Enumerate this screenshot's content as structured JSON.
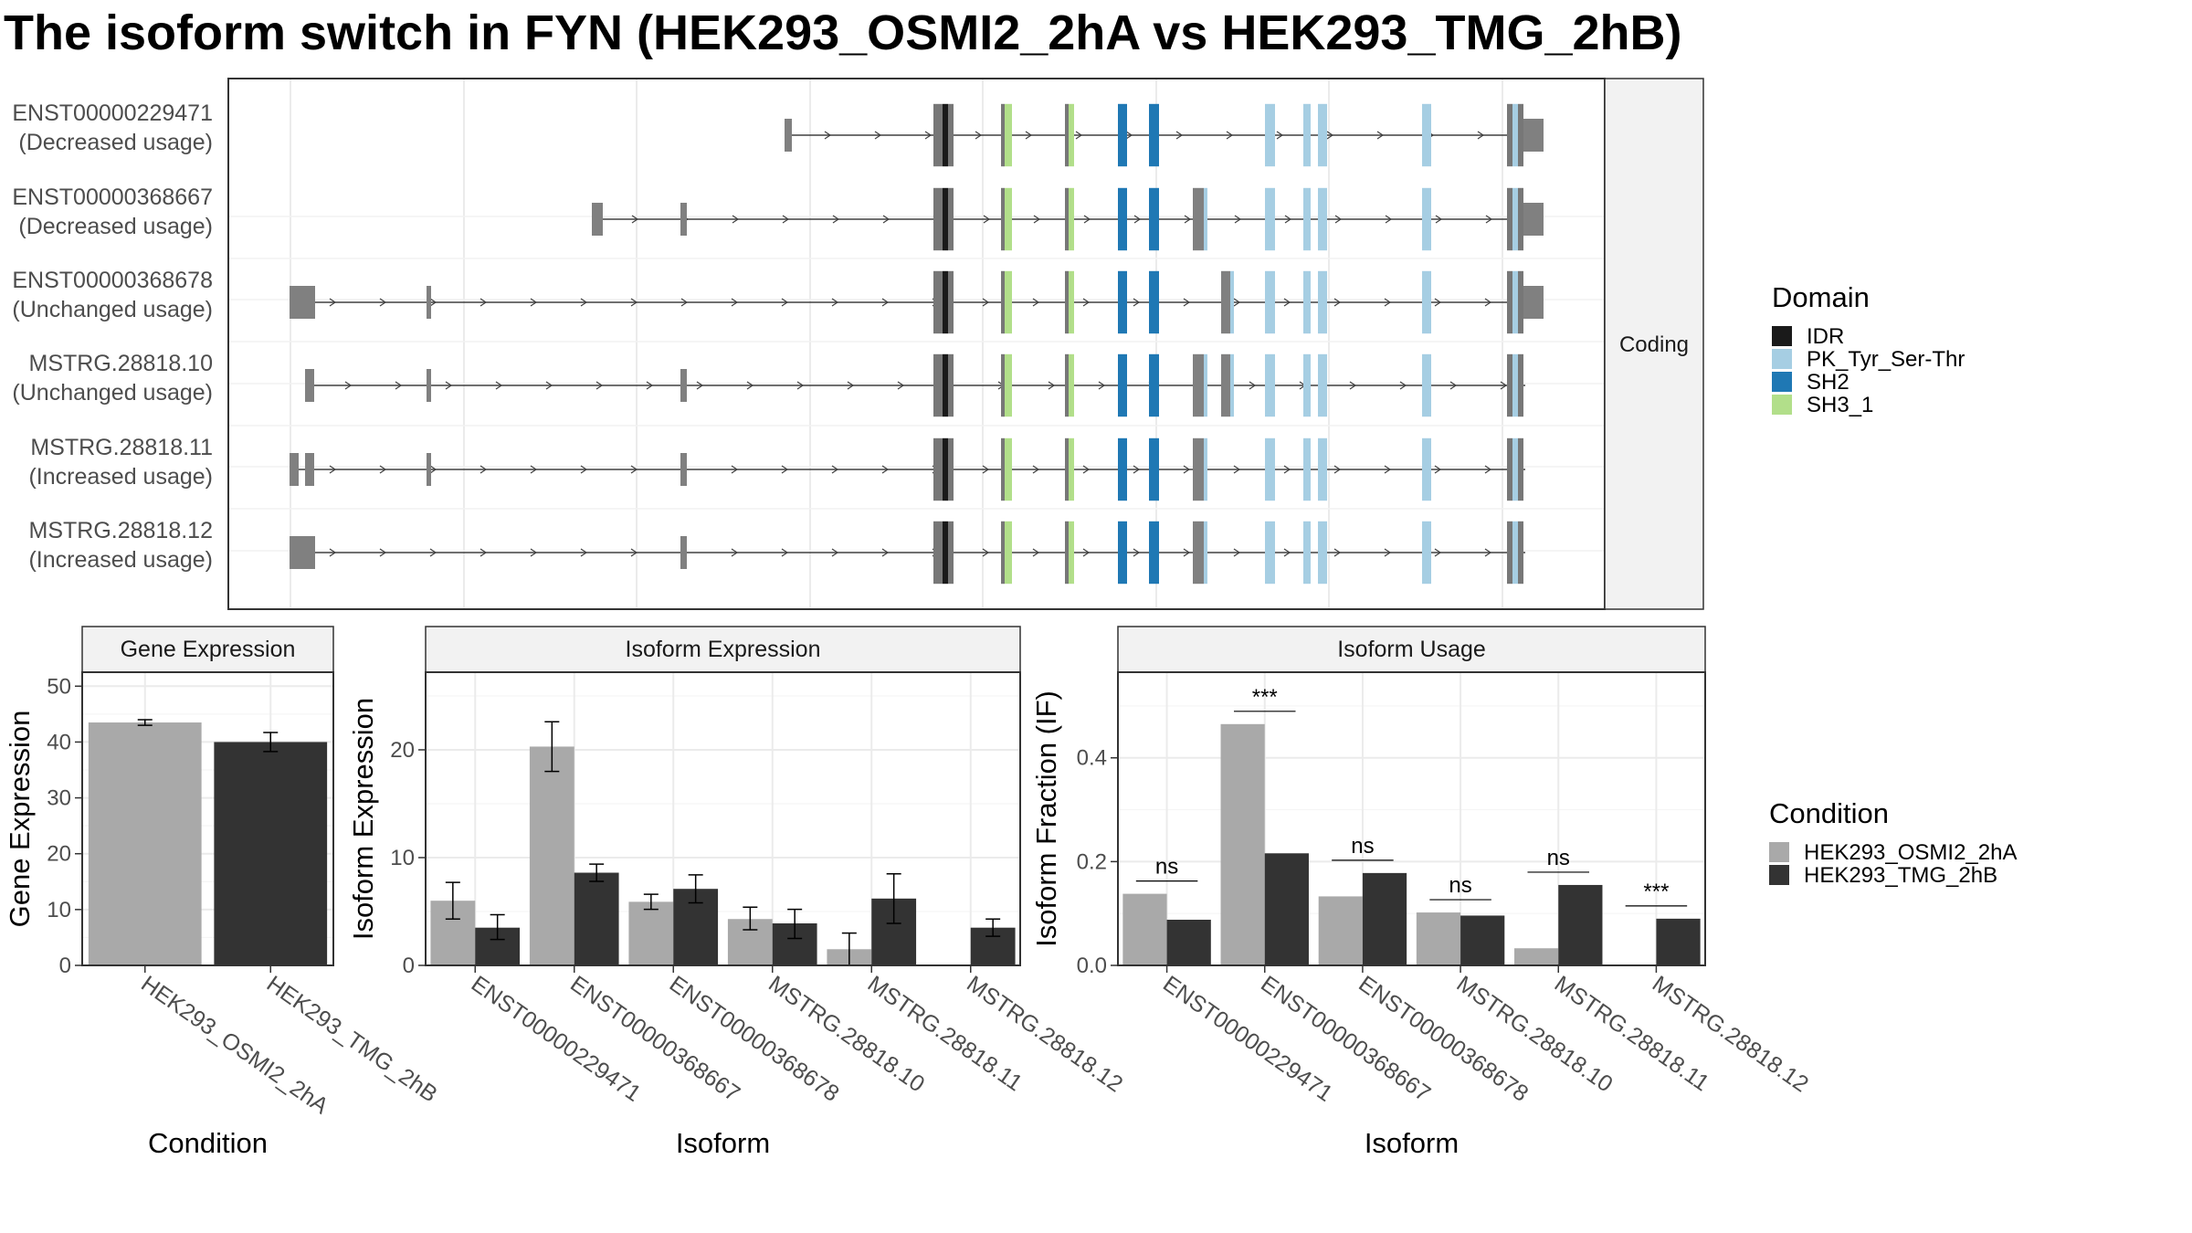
{
  "title": "The isoform switch in FYN (HEK293_OSMI2_2hA vs HEK293_TMG_2hB)",
  "colors": {
    "cond_a": "#a9a9a9",
    "cond_b": "#333333",
    "exon": "#808080",
    "intron": "#404040",
    "grid": "#ebebeb",
    "IDR": "#1a1a1a",
    "PK_Tyr_Ser-Thr": "#a6cee3",
    "SH2": "#1f78b4",
    "SH3_1": "#b2df8a"
  },
  "structure": {
    "facet_label": "Coding",
    "transcripts": [
      {
        "id": "ENST00000229471",
        "status": "(Decreased usage)"
      },
      {
        "id": "ENST00000368667",
        "status": "(Decreased usage)"
      },
      {
        "id": "ENST00000368678",
        "status": "(Unchanged usage)"
      },
      {
        "id": "MSTRG.28818.10",
        "status": "(Unchanged usage)"
      },
      {
        "id": "MSTRG.28818.11",
        "status": "(Increased usage)"
      },
      {
        "id": "MSTRG.28818.12",
        "status": "(Increased usage)"
      }
    ]
  },
  "legend_domain": {
    "title": "Domain",
    "items": [
      {
        "label": "IDR",
        "color": "#1a1a1a"
      },
      {
        "label": "PK_Tyr_Ser-Thr",
        "color": "#a6cee3"
      },
      {
        "label": "SH2",
        "color": "#1f78b4"
      },
      {
        "label": "SH3_1",
        "color": "#b2df8a"
      }
    ]
  },
  "legend_condition": {
    "title": "Condition",
    "items": [
      {
        "label": "HEK293_OSMI2_2hA",
        "color": "#a9a9a9"
      },
      {
        "label": "HEK293_TMG_2hB",
        "color": "#333333"
      }
    ]
  },
  "chart_data": [
    {
      "type": "bar",
      "title": "Gene Expression",
      "xlabel": "Condition",
      "ylabel": "Gene Expression",
      "categories": [
        "HEK293_OSMI2_2hA",
        "HEK293_TMG_2hB"
      ],
      "values": [
        43.5,
        40.0
      ],
      "errors": [
        [
          43.0,
          44.0
        ],
        [
          38.3,
          41.7
        ]
      ],
      "ylim": [
        0,
        52.5
      ],
      "yticks": [
        0,
        10,
        20,
        30,
        40,
        50
      ]
    },
    {
      "type": "bar",
      "title": "Isoform Expression",
      "xlabel": "Isoform",
      "ylabel": "Isoform Expression",
      "categories": [
        "ENST00000229471",
        "ENST00000368667",
        "ENST00000368678",
        "MSTRG.28818.10",
        "MSTRG.28818.11",
        "MSTRG.28818.12"
      ],
      "series": [
        {
          "name": "HEK293_OSMI2_2hA",
          "values": [
            6.0,
            20.3,
            5.9,
            4.3,
            1.5,
            0.0
          ],
          "errors": [
            [
              4.3,
              7.7
            ],
            [
              18.0,
              22.6
            ],
            [
              5.2,
              6.6
            ],
            [
              3.3,
              5.4
            ],
            [
              0.0,
              3.0
            ],
            [
              0.0,
              0.0
            ]
          ]
        },
        {
          "name": "HEK293_TMG_2hB",
          "values": [
            3.5,
            8.6,
            7.1,
            3.9,
            6.2,
            3.5
          ],
          "errors": [
            [
              2.4,
              4.7
            ],
            [
              7.8,
              9.4
            ],
            [
              5.8,
              8.4
            ],
            [
              2.5,
              5.2
            ],
            [
              3.9,
              8.5
            ],
            [
              2.7,
              4.3
            ]
          ]
        }
      ],
      "ylim": [
        0,
        27.2
      ],
      "yticks": [
        0,
        10,
        20
      ]
    },
    {
      "type": "bar",
      "title": "Isoform Usage",
      "xlabel": "Isoform",
      "ylabel": "Isoform Fraction (IF)",
      "categories": [
        "ENST00000229471",
        "ENST00000368667",
        "ENST00000368678",
        "MSTRG.28818.10",
        "MSTRG.28818.11",
        "MSTRG.28818.12"
      ],
      "series": [
        {
          "name": "HEK293_OSMI2_2hA",
          "values": [
            0.138,
            0.465,
            0.133,
            0.102,
            0.033,
            0.0
          ]
        },
        {
          "name": "HEK293_TMG_2hB",
          "values": [
            0.088,
            0.216,
            0.178,
            0.096,
            0.155,
            0.09
          ]
        }
      ],
      "significance": [
        "ns",
        "***",
        "ns",
        "ns",
        "ns",
        "***"
      ],
      "ylim": [
        0,
        0.565
      ],
      "yticks": [
        0.0,
        0.2,
        0.4
      ]
    }
  ]
}
